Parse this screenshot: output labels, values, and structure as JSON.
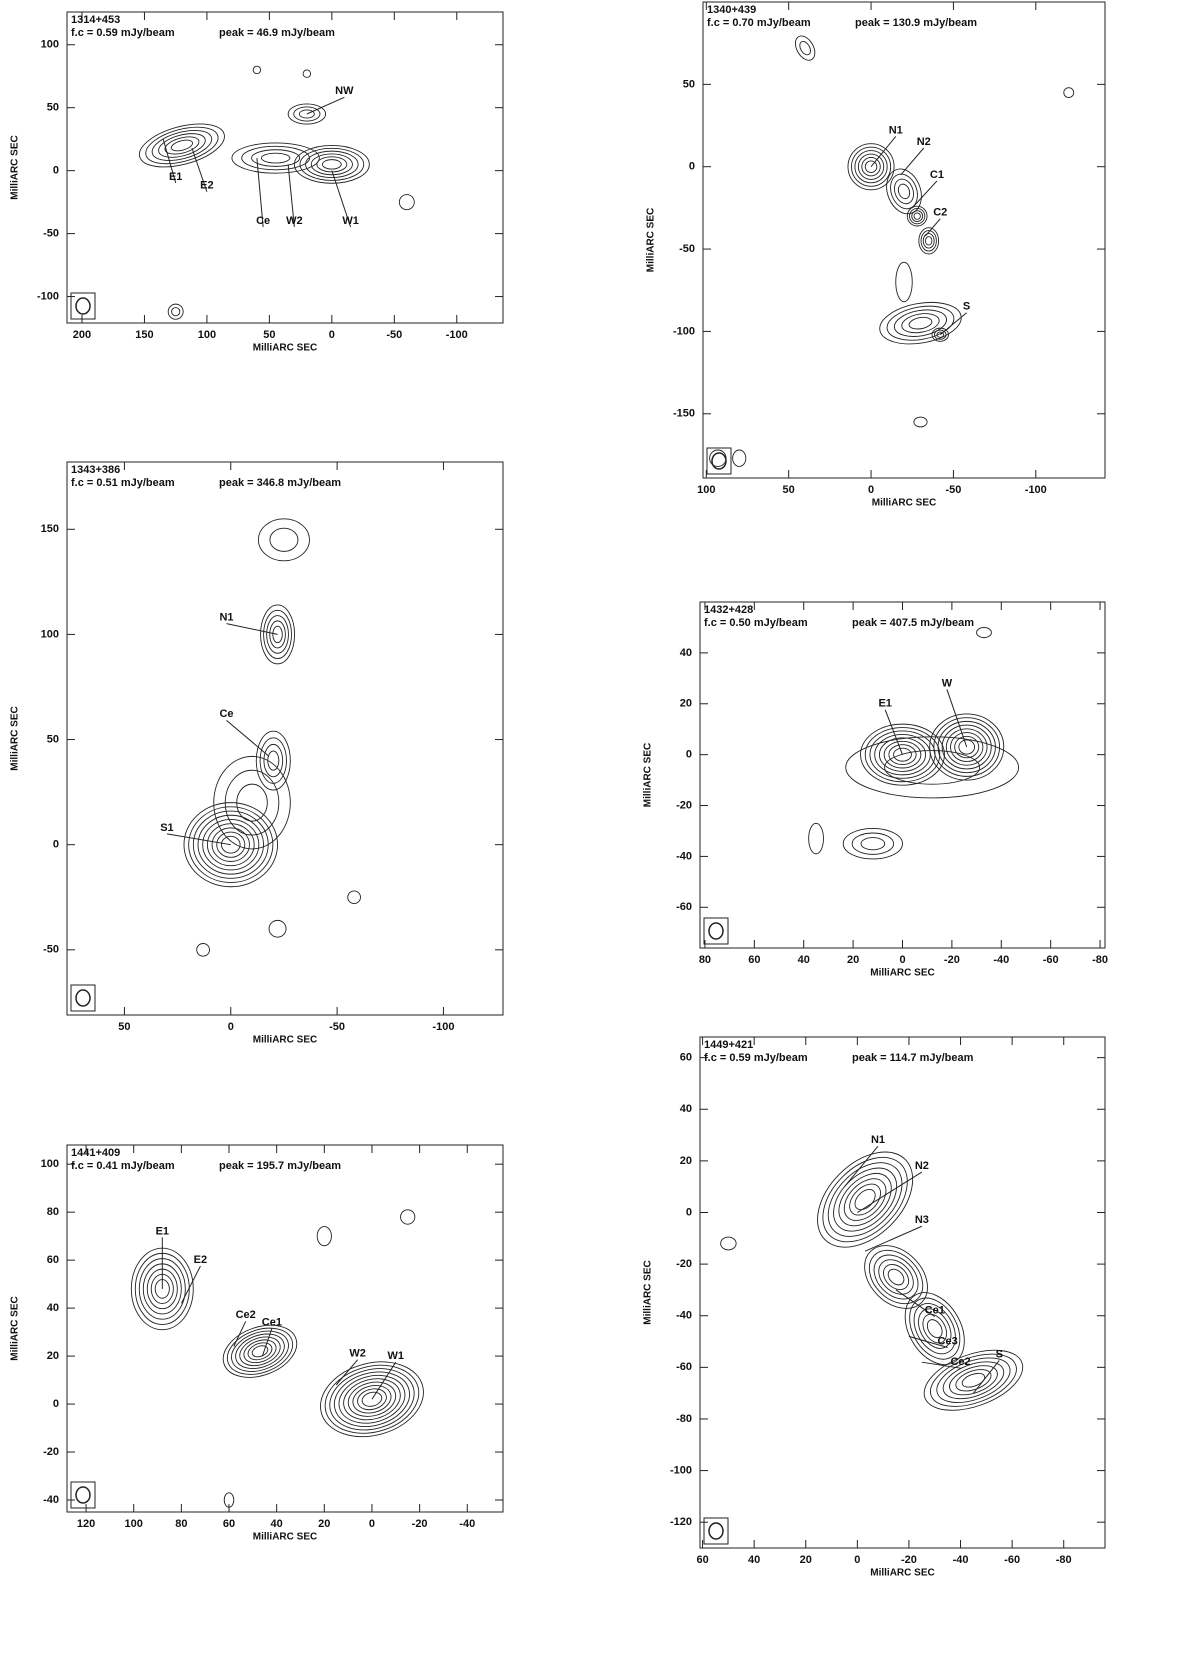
{
  "chart_data": [
    {
      "type": "contour",
      "title": "1314+453",
      "notes": [
        "f.c = 0.59 mJy/beam",
        "peak = 46.9 mJy/beam"
      ],
      "xlabel": "MilliARC SEC",
      "ylabel": "MilliARC SEC",
      "xlim": [
        212,
        -137
      ],
      "ylim": [
        -121,
        126
      ],
      "xticks": [
        200,
        150,
        100,
        50,
        0,
        -50,
        -100
      ],
      "yticks": [
        -100,
        -50,
        0,
        50,
        100
      ],
      "labels": [
        "NW",
        "E1",
        "E2",
        "Ce",
        "W2",
        "W1"
      ]
    },
    {
      "type": "contour",
      "title": "1343+386",
      "notes": [
        "f.c = 0.51 mJy/beam",
        "peak = 346.8 mJy/beam"
      ],
      "xlabel": "MilliARC SEC",
      "ylabel": "MilliARC SEC",
      "xlim": [
        77,
        -128
      ],
      "ylim": [
        -81,
        182
      ],
      "xticks": [
        50,
        0,
        -50,
        -100
      ],
      "yticks": [
        -50,
        0,
        50,
        100,
        150
      ],
      "labels": [
        "N1",
        "Ce",
        "S1"
      ]
    },
    {
      "type": "contour",
      "title": "1441+409",
      "notes": [
        "f.c = 0.41 mJy/beam",
        "peak = 195.7 mJy/beam"
      ],
      "xlabel": "MilliARC SEC",
      "ylabel": "MilliARC SEC",
      "xlim": [
        128,
        -55
      ],
      "ylim": [
        -45,
        108
      ],
      "xticks": [
        120,
        100,
        80,
        60,
        40,
        20,
        0,
        -20,
        -40
      ],
      "yticks": [
        -40,
        -20,
        0,
        20,
        40,
        60,
        80,
        100
      ],
      "labels": [
        "E1",
        "E2",
        "Ce2",
        "Ce1",
        "W2",
        "W1"
      ]
    },
    {
      "type": "contour",
      "title": "1340+439",
      "notes": [
        "f.c = 0.70 mJy/beam",
        "peak = 130.9 mJy/beam"
      ],
      "xlabel": "MilliARC SEC",
      "ylabel": "MilliARC SEC",
      "xlim": [
        102,
        -142
      ],
      "ylim": [
        -189,
        100
      ],
      "xticks": [
        100,
        50,
        0,
        -50,
        -100
      ],
      "yticks": [
        -150,
        -100,
        -50,
        0,
        50
      ],
      "labels": [
        "N1",
        "N2",
        "C1",
        "C2",
        "S"
      ]
    },
    {
      "type": "contour",
      "title": "1432+428",
      "notes": [
        "f.c = 0.50 mJy/beam",
        "peak = 407.5 mJy/beam"
      ],
      "xlabel": "MilliARC SEC",
      "ylabel": "MilliARC SEC",
      "xlim": [
        82,
        -82
      ],
      "ylim": [
        -76,
        60
      ],
      "xticks": [
        80,
        60,
        40,
        20,
        0,
        -20,
        -40,
        -60,
        -80
      ],
      "yticks": [
        -60,
        -40,
        -20,
        0,
        20,
        40
      ],
      "labels": [
        "E1",
        "W"
      ]
    },
    {
      "type": "contour",
      "title": "1449+421",
      "notes": [
        "f.c = 0.59 mJy/beam",
        "peak = 114.7 mJy/beam"
      ],
      "xlabel": "MilliARC SEC",
      "ylabel": "MilliARC SEC",
      "xlim": [
        61,
        -96
      ],
      "ylim": [
        -130,
        68
      ],
      "xticks": [
        60,
        40,
        20,
        0,
        -20,
        -40,
        -60,
        -80
      ],
      "yticks": [
        -120,
        -100,
        -80,
        -60,
        -40,
        -20,
        0,
        20,
        40,
        60
      ],
      "labels": [
        "N1",
        "N2",
        "N3",
        "Ce1",
        "Ce3",
        "Ce2",
        "S"
      ]
    }
  ]
}
